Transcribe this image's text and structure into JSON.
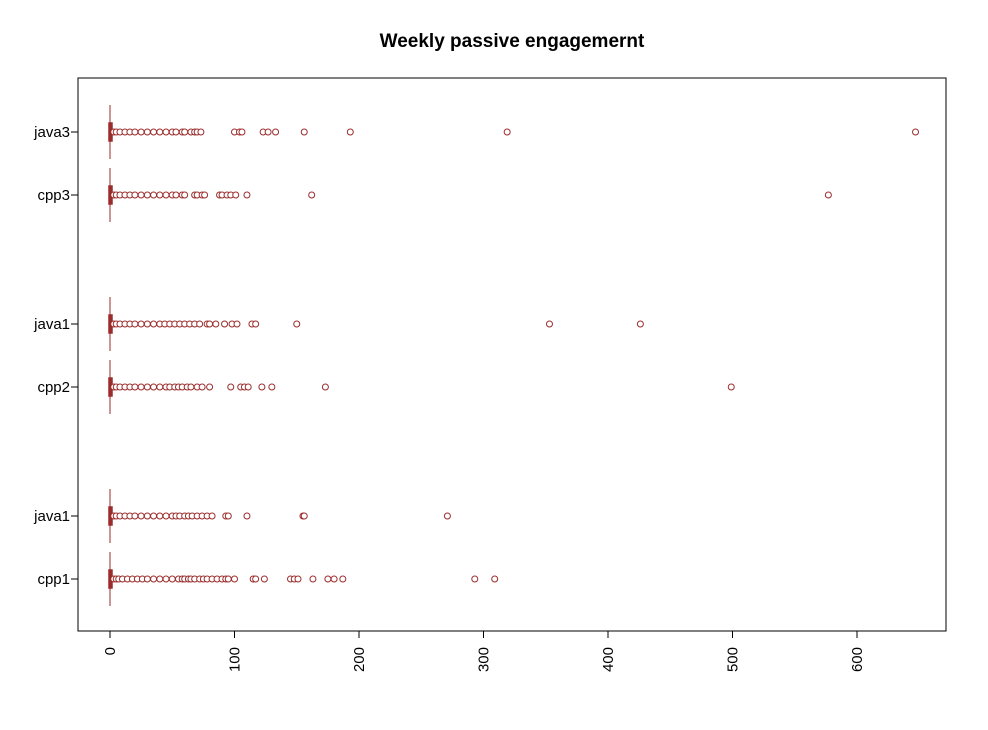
{
  "chart_data": {
    "type": "boxplot",
    "orientation": "horizontal",
    "title": "Weekly passive engagemernt",
    "xlabel": "",
    "ylabel": "",
    "xlim": [
      -26,
      670
    ],
    "xticks": [
      0,
      100,
      200,
      300,
      400,
      500,
      600
    ],
    "tick_label_rotation": "vertical",
    "grid": false,
    "legend": "none",
    "colors": {
      "box": "#9b2c2c",
      "frame": "#000000",
      "text": "#000000"
    },
    "categories": [
      "cpp1",
      "java1",
      "cpp2",
      "java1",
      "cpp3",
      "java3"
    ],
    "series": [
      {
        "label": "cpp1",
        "box": {
          "min": 0,
          "q1": 0,
          "median": 0,
          "q3": 1,
          "max": 2
        },
        "outliers": [
          3,
          5,
          7,
          10,
          14,
          18,
          22,
          26,
          30,
          35,
          40,
          45,
          50,
          55,
          58,
          60,
          63,
          65,
          68,
          72,
          75,
          78,
          82,
          86,
          90,
          93,
          95,
          100,
          115,
          117,
          124,
          145,
          148,
          151,
          163,
          175,
          180,
          187,
          293,
          309
        ]
      },
      {
        "label": "java1",
        "box": {
          "min": 0,
          "q1": 0,
          "median": 0,
          "q3": 1,
          "max": 2
        },
        "outliers": [
          3,
          5,
          8,
          12,
          16,
          20,
          25,
          30,
          35,
          40,
          45,
          50,
          53,
          56,
          60,
          63,
          66,
          70,
          74,
          78,
          82,
          93,
          95,
          110,
          155,
          156,
          271
        ]
      },
      {
        "label": "cpp2",
        "box": {
          "min": 0,
          "q1": 0,
          "median": 0,
          "q3": 1,
          "max": 2
        },
        "outliers": [
          3,
          5,
          8,
          12,
          16,
          20,
          25,
          30,
          35,
          40,
          45,
          48,
          52,
          55,
          58,
          62,
          65,
          70,
          74,
          80,
          97,
          105,
          108,
          111,
          122,
          130,
          173,
          499
        ]
      },
      {
        "label": "java1",
        "box": {
          "min": 0,
          "q1": 0,
          "median": 0,
          "q3": 1,
          "max": 2
        },
        "outliers": [
          3,
          5,
          8,
          12,
          16,
          20,
          25,
          30,
          35,
          40,
          44,
          48,
          52,
          56,
          60,
          64,
          68,
          72,
          78,
          80,
          85,
          92,
          98,
          102,
          114,
          117,
          150,
          353,
          426
        ]
      },
      {
        "label": "cpp3",
        "box": {
          "min": 0,
          "q1": 0,
          "median": 0,
          "q3": 1,
          "max": 2
        },
        "outliers": [
          3,
          5,
          8,
          12,
          16,
          20,
          25,
          30,
          35,
          40,
          45,
          50,
          53,
          58,
          60,
          68,
          70,
          74,
          76,
          88,
          90,
          94,
          97,
          101,
          110,
          162,
          577
        ]
      },
      {
        "label": "java3",
        "box": {
          "min": 0,
          "q1": 0,
          "median": 0,
          "q3": 1,
          "max": 2
        },
        "outliers": [
          3,
          5,
          8,
          12,
          16,
          20,
          25,
          30,
          35,
          40,
          45,
          50,
          53,
          58,
          60,
          65,
          68,
          70,
          73,
          100,
          104,
          106,
          123,
          127,
          133,
          156,
          193,
          319,
          647
        ]
      }
    ]
  }
}
